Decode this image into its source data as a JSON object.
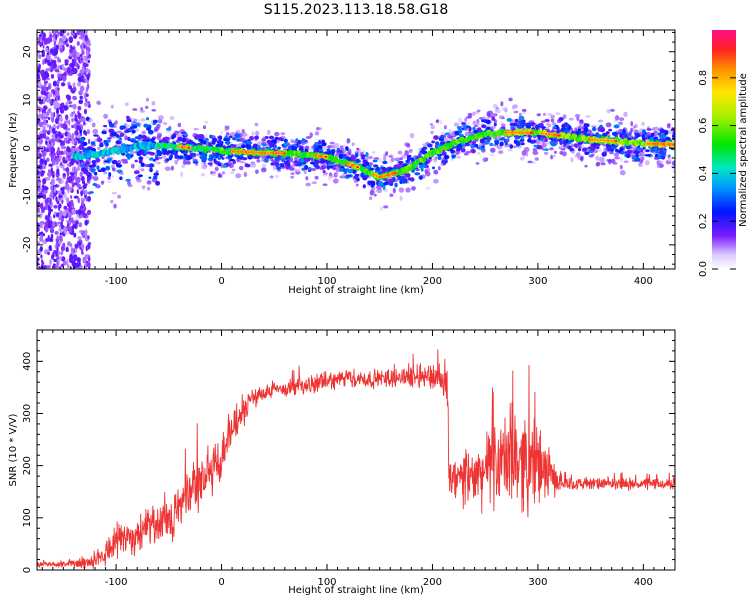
{
  "title": "S115.2023.113.18.58.G18",
  "chart_data": [
    {
      "type": "heatmap",
      "xlabel": "Height of straight line (km)",
      "ylabel": "Frequency (Hz)",
      "xlim": [
        -175,
        430
      ],
      "ylim": [
        -25,
        24.5
      ],
      "xticks": [
        -100,
        0,
        100,
        200,
        300,
        400
      ],
      "yticks": [
        -20,
        -10,
        0,
        10,
        20
      ],
      "colorbar": {
        "label": "Normalized spectral amplitude",
        "range": [
          0,
          1
        ],
        "ticks": [
          0.0,
          0.2,
          0.4,
          0.6,
          0.8
        ]
      },
      "ridge": {
        "x": [
          -170,
          -130,
          -100,
          -75,
          -50,
          -25,
          0,
          25,
          50,
          75,
          100,
          125,
          150,
          175,
          200,
          225,
          250,
          275,
          300,
          325,
          350,
          375,
          400,
          430
        ],
        "y": [
          -2.0,
          -1.5,
          -0.5,
          0.5,
          0.5,
          0.0,
          -0.5,
          -0.8,
          -1.0,
          -1.2,
          -1.8,
          -3.5,
          -6.0,
          -4.5,
          -1.0,
          1.5,
          3.0,
          3.3,
          3.2,
          2.5,
          1.8,
          1.5,
          1.0,
          0.8
        ]
      }
    },
    {
      "type": "line",
      "xlabel": "Height of straight line (km)",
      "ylabel": "SNR (10 * V/V)",
      "xlim": [
        -175,
        430
      ],
      "ylim": [
        0,
        460
      ],
      "xticks": [
        -100,
        0,
        100,
        200,
        300,
        400
      ],
      "yticks": [
        0,
        100,
        200,
        300,
        400
      ],
      "color": "#ee3333",
      "series": [
        {
          "x": [
            -175,
            -150,
            -125,
            -110,
            -100,
            -80,
            -60,
            -40,
            -20,
            0,
            10,
            20,
            30,
            40,
            60,
            80,
            100,
            120,
            140,
            160,
            180,
            200,
            210,
            214,
            216,
            220,
            240,
            260,
            280,
            300,
            310,
            320,
            340,
            360,
            380,
            400,
            430
          ],
          "values": [
            10,
            10,
            15,
            35,
            60,
            65,
            85,
            115,
            170,
            215,
            270,
            300,
            330,
            340,
            348,
            352,
            362,
            368,
            365,
            368,
            372,
            372,
            358,
            345,
            175,
            170,
            178,
            205,
            215,
            200,
            185,
            168,
            165,
            165,
            165,
            165,
            165
          ],
          "noise": [
            4,
            4,
            8,
            18,
            25,
            25,
            30,
            30,
            40,
            35,
            28,
            18,
            14,
            12,
            12,
            12,
            12,
            12,
            12,
            12,
            15,
            18,
            22,
            30,
            30,
            32,
            40,
            55,
            70,
            55,
            35,
            12,
            8,
            8,
            8,
            8,
            8
          ]
        }
      ]
    }
  ]
}
